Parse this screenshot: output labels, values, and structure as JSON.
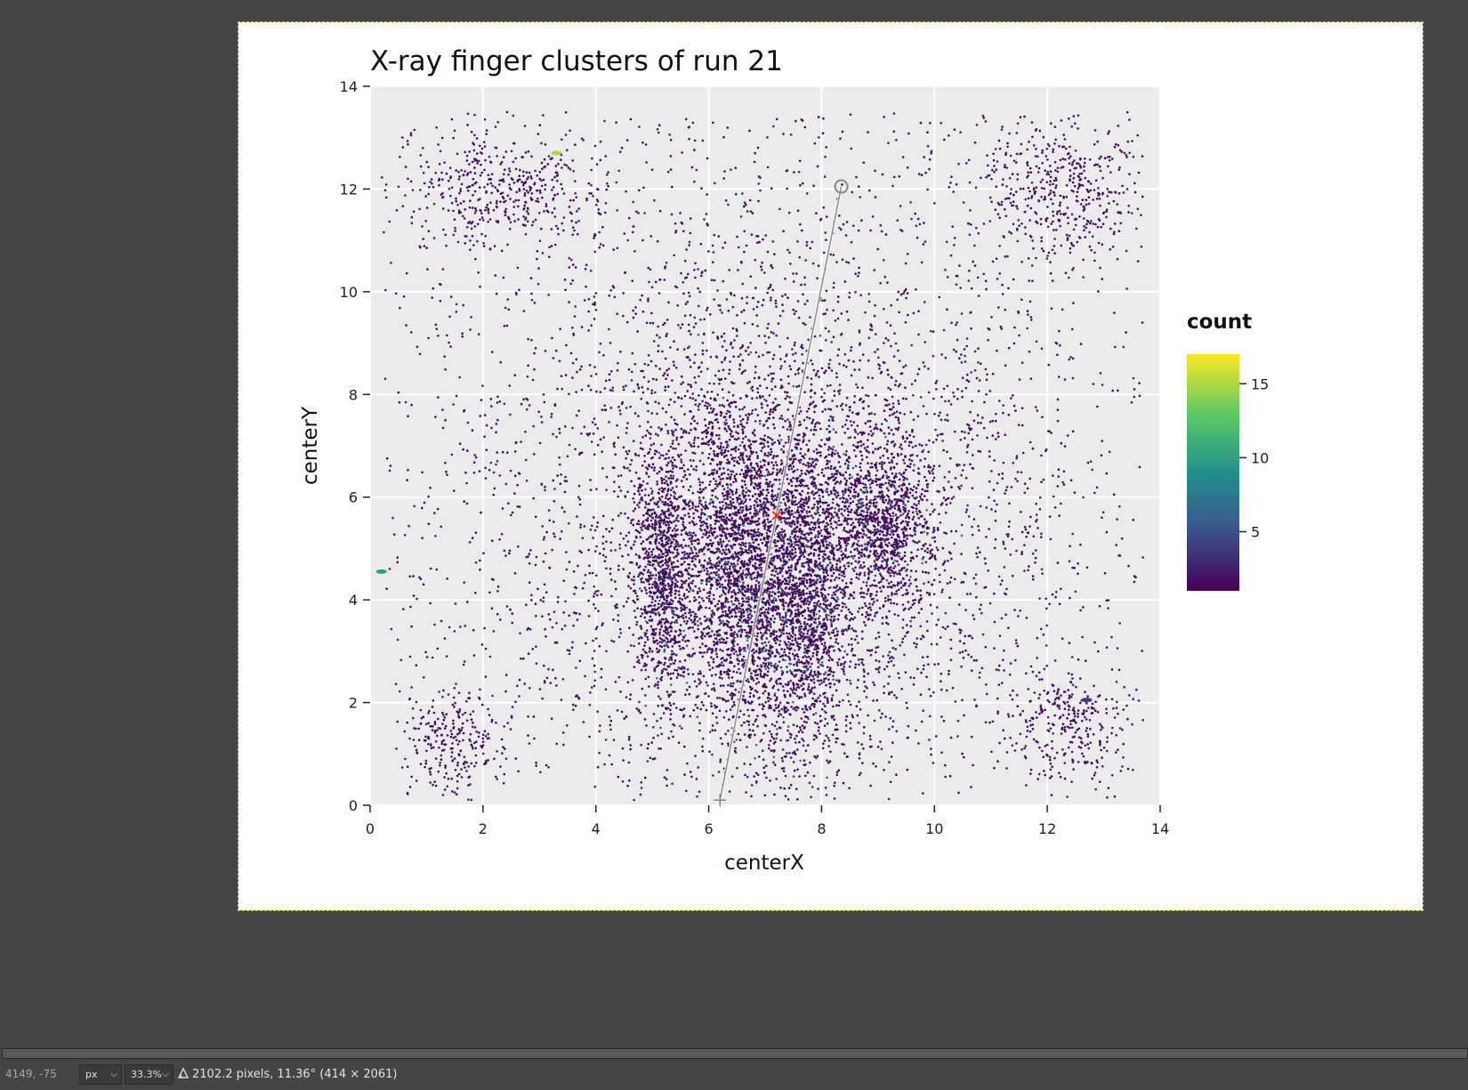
{
  "status": {
    "coordinates": "4149, -75",
    "unit": "px",
    "zoom": "33.3%",
    "measure": "2102.2 pixels, 11.36° (414 × 2061)"
  },
  "icons": {
    "unit_chevron": "chevron-down-icon",
    "zoom_chevron": "chevron-down-icon",
    "measure": "measure-tool-icon"
  },
  "colors": {
    "workspace": "#454545",
    "panel_bg": "#ebebeb",
    "grid": "#ffffff",
    "points": "#440154",
    "measure_line": "#9a9a9a",
    "marker": "#ff0000"
  },
  "chart_data": {
    "type": "scatter",
    "title": "X-ray finger clusters of run 21",
    "xlabel": "centerX",
    "ylabel": "centerY",
    "xlim": [
      0,
      14
    ],
    "ylim": [
      0,
      14
    ],
    "xticks": [
      "0",
      "2",
      "4",
      "6",
      "8",
      "10",
      "12",
      "14"
    ],
    "yticks": [
      "0",
      "2",
      "4",
      "6",
      "8",
      "10",
      "12",
      "14"
    ],
    "grid": true,
    "legend": {
      "title": "count",
      "placement": "right",
      "ticks": [
        "5",
        "10",
        "15"
      ],
      "range": [
        1,
        17
      ],
      "colormap": "viridis"
    },
    "clusters": [
      {
        "x": 5.2,
        "y": 4.6,
        "sx": 0.25,
        "sy": 1.2,
        "n": 900,
        "v": 2
      },
      {
        "x": 6.5,
        "y": 4.8,
        "sx": 0.45,
        "sy": 1.6,
        "n": 1800,
        "v": 3
      },
      {
        "x": 7.7,
        "y": 4.2,
        "sx": 0.45,
        "sy": 1.7,
        "n": 1900,
        "v": 3
      },
      {
        "x": 9.1,
        "y": 5.5,
        "sx": 0.45,
        "sy": 0.8,
        "n": 1000,
        "v": 2
      },
      {
        "x": 7.2,
        "y": 5.0,
        "sx": 2.2,
        "sy": 2.6,
        "n": 2400,
        "v": 1
      },
      {
        "x": 7.0,
        "y": 7.0,
        "sx": 4.0,
        "sy": 4.5,
        "n": 3000,
        "v": 1
      },
      {
        "x": 2.3,
        "y": 12.0,
        "sx": 0.9,
        "sy": 0.6,
        "n": 450,
        "v": 1
      },
      {
        "x": 12.3,
        "y": 12.0,
        "sx": 0.8,
        "sy": 0.7,
        "n": 450,
        "v": 1
      },
      {
        "x": 1.4,
        "y": 1.3,
        "sx": 0.5,
        "sy": 0.5,
        "n": 250,
        "v": 1
      },
      {
        "x": 12.4,
        "y": 1.6,
        "sx": 0.6,
        "sy": 0.6,
        "n": 300,
        "v": 1
      }
    ],
    "hotspots": [
      {
        "x": 3.3,
        "y": 12.7,
        "v": 15
      },
      {
        "x": 0.2,
        "y": 4.55,
        "v": 10
      },
      {
        "x": 12.7,
        "y": 2.05,
        "v": 4
      }
    ],
    "marker": {
      "x": 7.2,
      "y": 5.65,
      "label": "×"
    },
    "measure_line": {
      "x1": 6.2,
      "y1": 0.1,
      "x2": 8.35,
      "y2": 12.05
    }
  }
}
